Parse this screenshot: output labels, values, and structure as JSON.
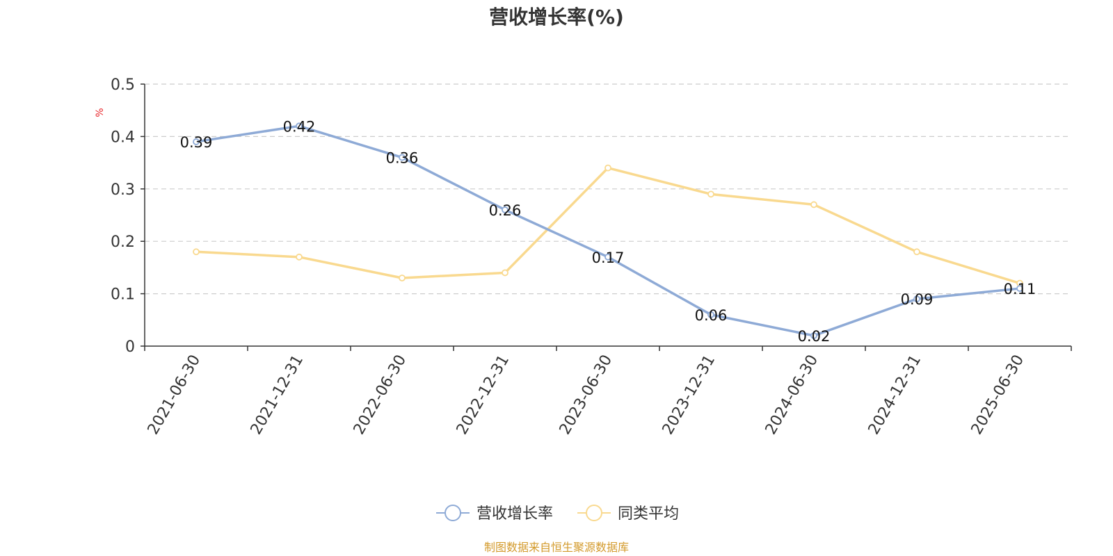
{
  "chart_data": {
    "type": "line",
    "title": "营收增长率(%)",
    "ylabel": "%",
    "categories": [
      "2021-06-30",
      "2021-12-31",
      "2022-06-30",
      "2022-12-31",
      "2023-06-30",
      "2023-12-31",
      "2024-06-30",
      "2024-12-31",
      "2025-06-30"
    ],
    "ylim": [
      0,
      0.5
    ],
    "yticks": [
      "0",
      "0.1",
      "0.2",
      "0.3",
      "0.4",
      "0.5"
    ],
    "grid": true,
    "legend_position": "bottom",
    "series": [
      {
        "name": "营收增长率",
        "color": "#8eaad6",
        "values": [
          0.39,
          0.42,
          0.36,
          0.26,
          0.17,
          0.06,
          0.02,
          0.09,
          0.11
        ],
        "labels": [
          "0.39",
          "0.42",
          "0.36",
          "0.26",
          "0.17",
          "0.06",
          "0.02",
          "0.09",
          "0.11"
        ]
      },
      {
        "name": "同类平均",
        "color": "#f9d98f",
        "values": [
          0.18,
          0.17,
          0.13,
          0.14,
          0.34,
          0.29,
          0.27,
          0.18,
          0.12
        ]
      }
    ],
    "source": "制图数据来自恒生聚源数据库"
  }
}
